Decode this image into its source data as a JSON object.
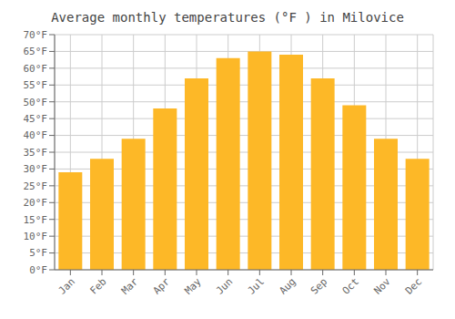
{
  "chart_data": {
    "type": "bar",
    "title": "Average monthly temperatures (°F ) in Milovice",
    "categories": [
      "Jan",
      "Feb",
      "Mar",
      "Apr",
      "May",
      "Jun",
      "Jul",
      "Aug",
      "Sep",
      "Oct",
      "Nov",
      "Dec"
    ],
    "values": [
      29,
      33,
      39,
      48,
      57,
      63,
      65,
      64,
      57,
      49,
      39,
      33
    ],
    "color": "#FDB827",
    "ylim": [
      0,
      70
    ],
    "yticks": [
      {
        "value": 0,
        "label": "0°F"
      },
      {
        "value": 5,
        "label": "5°F"
      },
      {
        "value": 10,
        "label": "10°F"
      },
      {
        "value": 15,
        "label": "15°F"
      },
      {
        "value": 20,
        "label": "20°F"
      },
      {
        "value": 25,
        "label": "25°F"
      },
      {
        "value": 30,
        "label": "30°F"
      },
      {
        "value": 35,
        "label": "35°F"
      },
      {
        "value": 40,
        "label": "40°F"
      },
      {
        "value": 45,
        "label": "45°F"
      },
      {
        "value": 50,
        "label": "50°F"
      },
      {
        "value": 55,
        "label": "55°F"
      },
      {
        "value": 60,
        "label": "60°F"
      },
      {
        "value": 65,
        "label": "65°F"
      },
      {
        "value": 70,
        "label": "70°F"
      }
    ],
    "grid": true
  }
}
